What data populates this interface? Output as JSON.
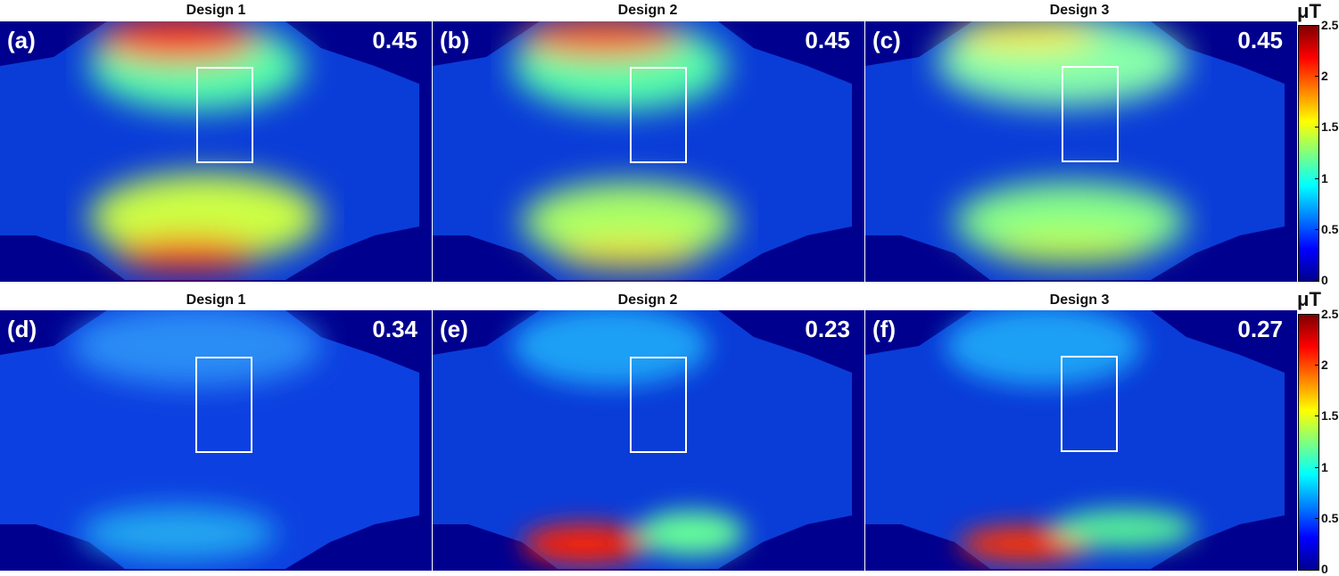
{
  "chart_data": {
    "type": "heatmap",
    "unit": "μT",
    "colorbar": {
      "min": 0,
      "max": 2.5,
      "ticks": [
        "0",
        "0.5",
        "1",
        "1.5",
        "2",
        "2.5"
      ],
      "colormap": "jet"
    },
    "rows": [
      {
        "panels": [
          {
            "label": "(a)",
            "title": "Design 1",
            "value": "0.45",
            "intensity": 1.0
          },
          {
            "label": "(b)",
            "title": "Design 2",
            "value": "0.45",
            "intensity": 0.85
          },
          {
            "label": "(c)",
            "title": "Design 3",
            "value": "0.45",
            "intensity": 0.7
          }
        ]
      },
      {
        "panels": [
          {
            "label": "(d)",
            "title": "Design 1",
            "value": "0.34",
            "intensity": 0.35
          },
          {
            "label": "(e)",
            "title": "Design 2",
            "value": "0.23",
            "intensity": 0.3
          },
          {
            "label": "(f)",
            "title": "Design 3",
            "value": "0.27",
            "intensity": 0.3
          }
        ]
      }
    ]
  }
}
